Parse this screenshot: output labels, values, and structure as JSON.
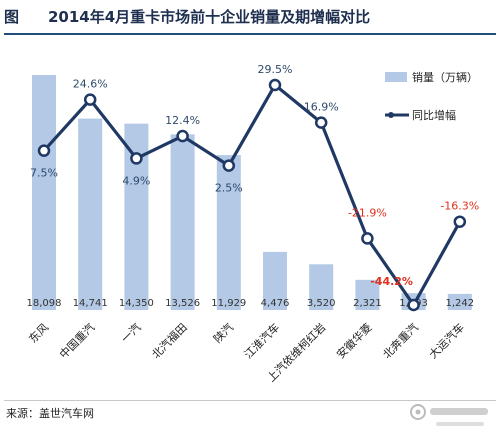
{
  "page": {
    "title_prefix": "图",
    "title": "2014年4月重卡市场前十企业销量及期增幅对比",
    "source": "来源：盖世汽车网"
  },
  "chart_data": {
    "type": "bar+line",
    "title": "2014年4月重卡市场前十企业销量及期增幅对比",
    "categories": [
      "东风",
      "中国重汽",
      "一汽",
      "北汽福田",
      "陕汽",
      "江淮汽车",
      "上汽依维柯红岩",
      "安徽华菱",
      "北奔重汽",
      "大运汽车"
    ],
    "series": [
      {
        "name": "销量（万辆）",
        "type": "bar",
        "values": [
          18098,
          14741,
          14350,
          13526,
          11929,
          4476,
          3520,
          2321,
          1293,
          1242
        ],
        "labels": [
          "18,098",
          "14,741",
          "14,350",
          "13,526",
          "11,929",
          "4,476",
          "3,520",
          "2,321",
          "1,293",
          "1,242"
        ],
        "color": "#b3c9e5"
      },
      {
        "name": "同比增幅",
        "type": "line",
        "values": [
          7.5,
          24.6,
          4.9,
          12.4,
          2.5,
          29.5,
          16.9,
          -21.9,
          -44.2,
          -16.3
        ],
        "labels": [
          "7.5%",
          "24.6%",
          "4.9%",
          "12.4%",
          "2.5%",
          "29.5%",
          "16.9%",
          "-21.9%",
          "-44.2%",
          "-16.3%"
        ],
        "color": "#1f3864"
      }
    ],
    "legend_position": "right",
    "colors": {
      "positive_label": "#2e4a6b",
      "negative_label": "#e0301e",
      "line": "#1f3864",
      "bar": "#b3c9e5"
    }
  }
}
